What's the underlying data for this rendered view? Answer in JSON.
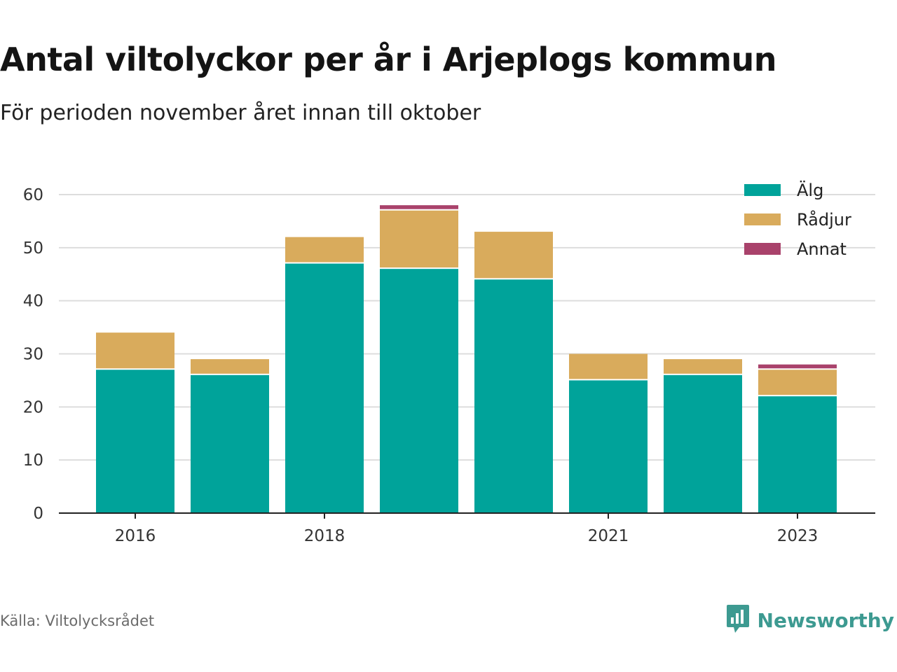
{
  "header": {
    "title": "Antal viltolyckor per år i Arjeplogs kommun",
    "subtitle": "För perioden november året innan till oktober"
  },
  "footer": {
    "source": "Källa: Viltolycksrådet",
    "brand": "Newsworthy",
    "brand_icon": "bar-chart-speech-bubble-icon"
  },
  "colors": {
    "Älg": "#00a39a",
    "Rådjur": "#d9ab5c",
    "Annat": "#a9426b",
    "grid": "#dddddd",
    "axis": "#222222",
    "brand": "#3d9a91"
  },
  "chart_data": {
    "type": "bar",
    "stacked": true,
    "title": "Antal viltolyckor per år i Arjeplogs kommun",
    "subtitle": "För perioden november året innan till oktober",
    "xlabel": "",
    "ylabel": "",
    "categories": [
      "2016",
      "2017",
      "2018",
      "2019",
      "2020",
      "2021",
      "2022",
      "2023"
    ],
    "x_tick_labels": [
      "2016",
      "",
      "2018",
      "",
      "",
      "2021",
      "",
      "2023"
    ],
    "series": [
      {
        "name": "Älg",
        "values": [
          27,
          26,
          47,
          46,
          44,
          25,
          26,
          22
        ]
      },
      {
        "name": "Rådjur",
        "values": [
          7,
          3,
          5,
          11,
          9,
          5,
          3,
          5
        ]
      },
      {
        "name": "Annat",
        "values": [
          0,
          0,
          0,
          1,
          0,
          0,
          0,
          1
        ]
      }
    ],
    "ylim": [
      0,
      60
    ],
    "y_ticks": [
      0,
      10,
      20,
      30,
      40,
      50,
      60
    ],
    "grid": true,
    "legend": "top-right"
  }
}
